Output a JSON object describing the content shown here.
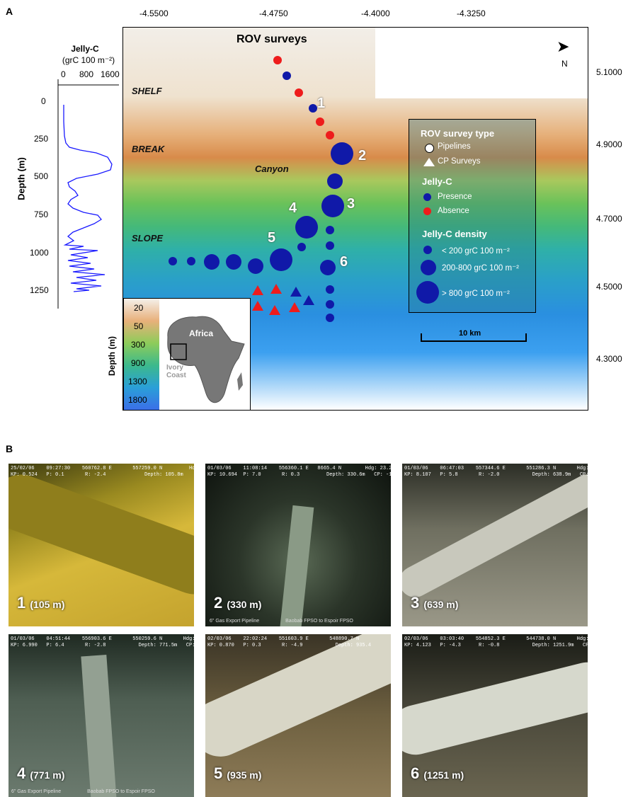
{
  "panels": {
    "a": "A",
    "b": "B"
  },
  "profile": {
    "title": "Jelly-C",
    "unit": "(grC 100 m⁻²)",
    "x_ticks": [
      "0",
      "800",
      "1600"
    ],
    "y_label": "Depth (m)",
    "y_ticks": [
      "0",
      "250",
      "500",
      "750",
      "1000",
      "1250"
    ]
  },
  "map": {
    "title": "ROV surveys",
    "x_ticks": [
      "-4.5500",
      "-4.4750",
      "-4.4000",
      "-4.3250"
    ],
    "y_ticks": [
      "5.1000",
      "4.9000",
      "4.7000",
      "4.5000",
      "4.3000"
    ],
    "labels": {
      "shelf": "SHELF",
      "break": "BREAK",
      "slope": "SLOPE",
      "canyon": "Canyon"
    },
    "north": "N",
    "scale": "10 km",
    "sites": [
      "1",
      "2",
      "3",
      "4",
      "5",
      "6"
    ]
  },
  "legend": {
    "type_title": "ROV survey type",
    "pipelines": "Pipelines",
    "cp": "CP Surveys",
    "jelly_title": "Jelly-C",
    "presence": "Presence",
    "absence": "Absence",
    "density_title": "Jelly-C density",
    "d1": "< 200 grC 100 m⁻²",
    "d2": "200-800 grC 100 m⁻²",
    "d3": "> 800 grC 100 m⁻²"
  },
  "depth_key": {
    "label": "Depth (m)",
    "values": [
      "20",
      "50",
      "300",
      "900",
      "1300",
      "1800"
    ],
    "africa": "Africa",
    "ivory": "Ivory Coast"
  },
  "photos": [
    {
      "num": "1",
      "depth": "(105 m)",
      "meta": "25/02/06    09:27:30    560762.8 E       557259.0 N         Hdg: 337.9\nKP: 0.524   P: 0.1       R: -2.4             Depth: 105.8m    CP: -1039mV",
      "footer": ""
    },
    {
      "num": "2",
      "depth": "(330 m)",
      "meta": "01/03/06    11:08:14    556360.1 E   8665.4 N        Hdg: 23.2\nKP: 10.694  P: 7.0       R: 0.3         Depth: 330.6m   CP: -1089mV",
      "footer": "6\" Gas Export Pipeline                   Baobab FPSO to Espoir FPSO"
    },
    {
      "num": "3",
      "depth": "(639 m)",
      "meta": "01/03/06    06:47:03    557344.6 E       551286.3 N       Hdg: 22.8\nKP: 8.107   P: 5.8       R: -2.0           Depth: 638.9m   CP: -1095mV",
      "footer": ""
    },
    {
      "num": "4",
      "depth": "(771 m)",
      "meta": "01/03/06    04:51:44    556903.6 E       550259.6 N       Hdg: 23.9\nKP: 6.990   P: 6.4       R: -2.8           Depth: 771.5m   CP: -1095mV",
      "footer": "6\" Gas Export Pipeline                   Baobab FPSO to Espoir FPSO"
    },
    {
      "num": "5",
      "depth": "(935 m)",
      "meta": "02/03/06    22:02:24    551603.9 E       548890.7 N\nKP: 0.870   P: 0.3       R: -4.9           Depth: 935.4",
      "footer": ""
    },
    {
      "num": "6",
      "depth": "(1251 m)",
      "meta": "02/03/06    03:03:40    554852.3 E       544738.0 N       Hdg: 93.8\nKP: 4.123   P: -4.3      R: -0.8           Depth: 1251.9m   CP: -1053mV",
      "footer": ""
    }
  ]
}
